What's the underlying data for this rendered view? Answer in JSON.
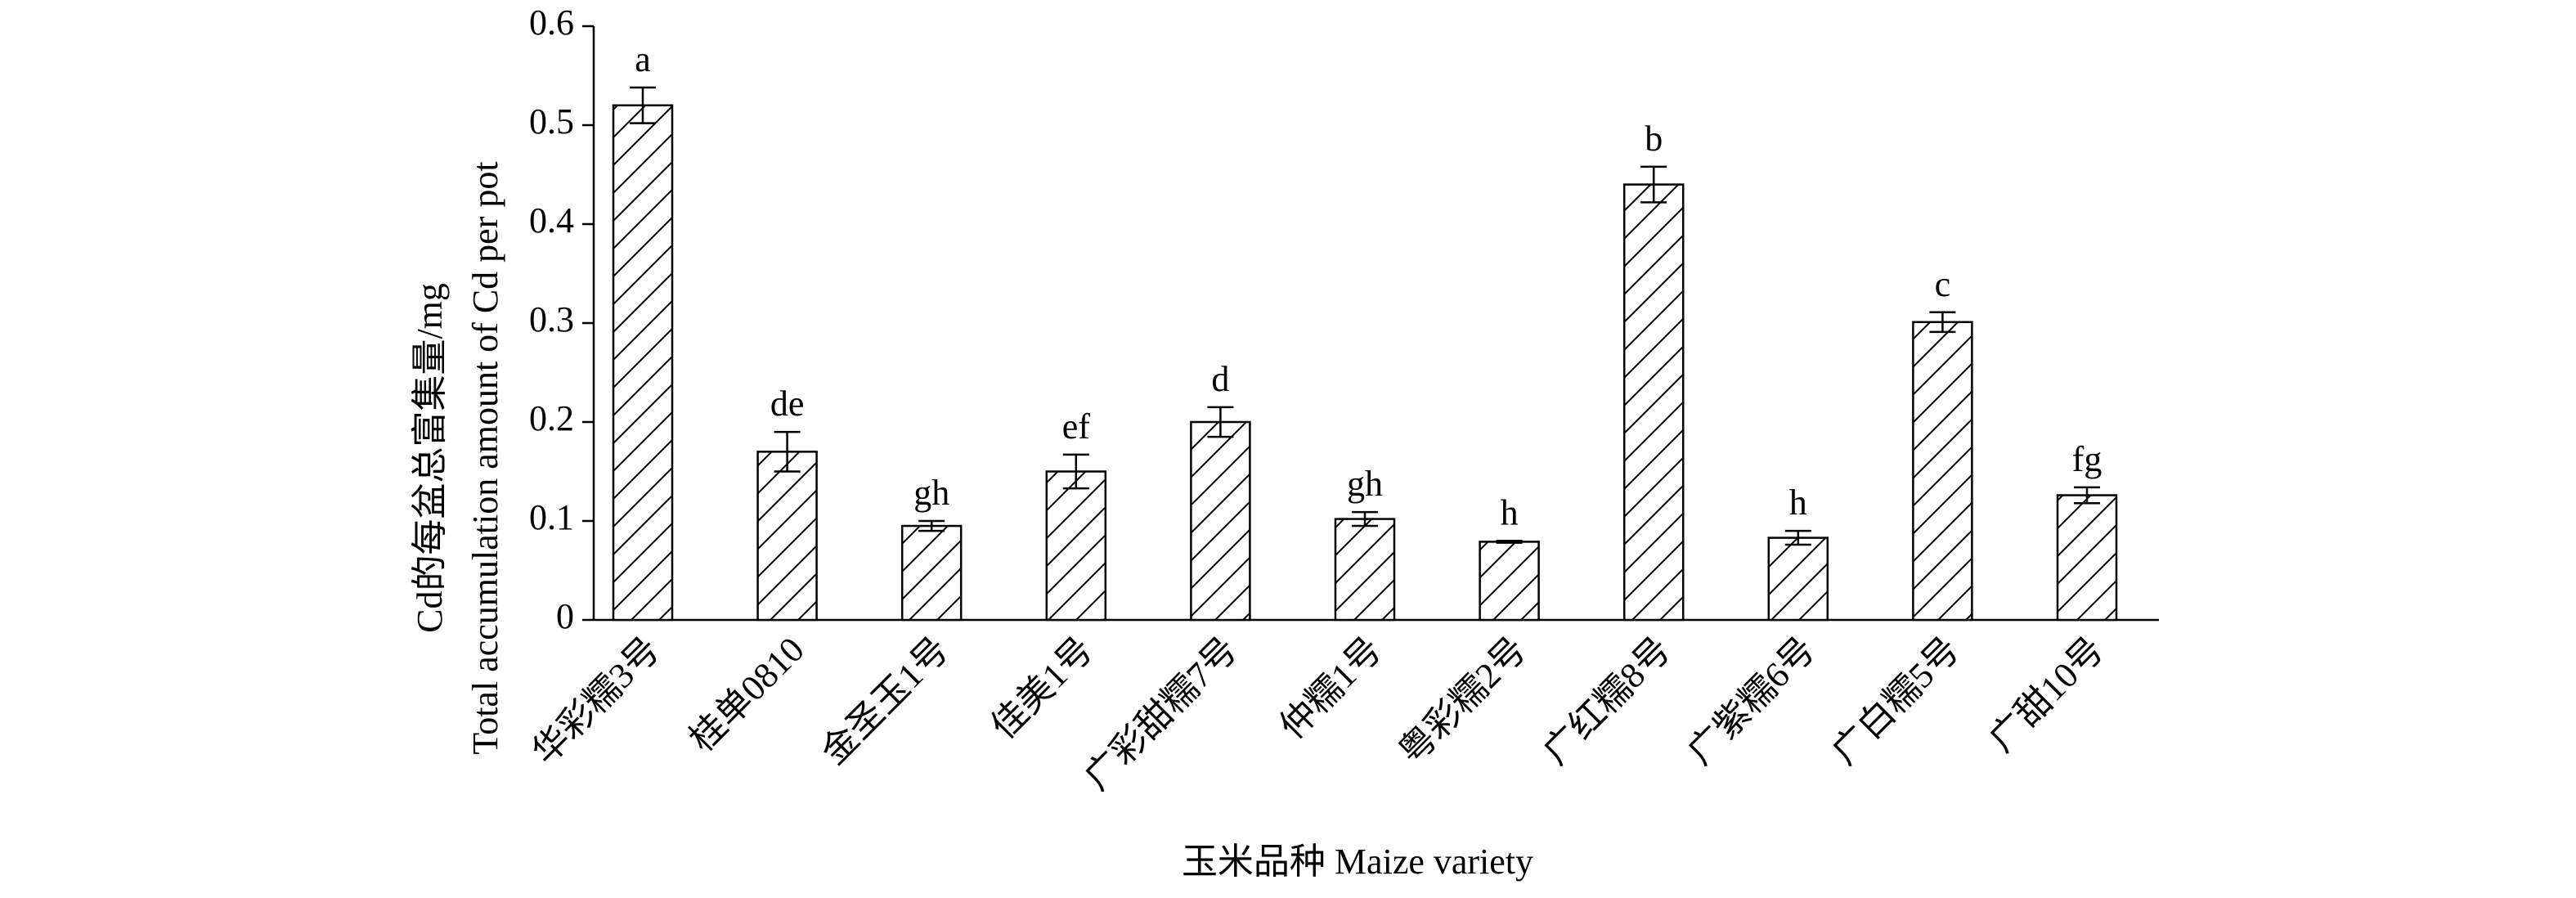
{
  "chart_data": {
    "type": "bar",
    "y_label": [
      "Cd的每盆总富集量/mg",
      "Total accumulation amount of Cd per pot"
    ],
    "x_label": "玉米品种 Maize variety",
    "categories": [
      "华彩糯3号",
      "桂单0810",
      "金圣玉1号",
      "佳美1号",
      "广彩甜糯7号",
      "仲糯1号",
      "粤彩糯2号",
      "广红糯8号",
      "广紫糯6号",
      "广白糯5号",
      "广甜10号"
    ],
    "values": [
      0.52,
      0.17,
      0.095,
      0.15,
      0.2,
      0.102,
      0.079,
      0.44,
      0.083,
      0.301,
      0.126
    ],
    "errors": [
      0.018,
      0.02,
      0.005,
      0.017,
      0.015,
      0.007,
      0.001,
      0.018,
      0.007,
      0.01,
      0.008
    ],
    "annotations": [
      "a",
      "de",
      "gh",
      "ef",
      "d",
      "gh",
      "h",
      "b",
      "h",
      "c",
      "fg"
    ],
    "color": "#000000",
    "ylim": [
      0,
      0.6
    ],
    "yticks": [
      0,
      0.1,
      0.2,
      0.3,
      0.4,
      0.5,
      0.6
    ],
    "grid": false
  }
}
